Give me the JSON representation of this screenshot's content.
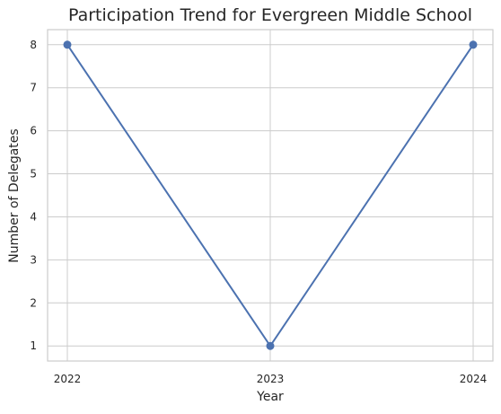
{
  "chart_data": {
    "type": "line",
    "title": "Participation Trend for Evergreen Middle School",
    "xlabel": "Year",
    "ylabel": "Number of Delegates",
    "x": [
      "2022",
      "2023",
      "2024"
    ],
    "series": [
      {
        "values": [
          8,
          1,
          8
        ]
      }
    ],
    "yticks": [
      "1",
      "2",
      "3",
      "4",
      "5",
      "6",
      "7",
      "8"
    ],
    "ylim": [
      0.65,
      8.35
    ],
    "grid": true,
    "line_color": "#4c72b0",
    "marker_color": "#4c72b0",
    "grid_color": "#cccccc"
  }
}
